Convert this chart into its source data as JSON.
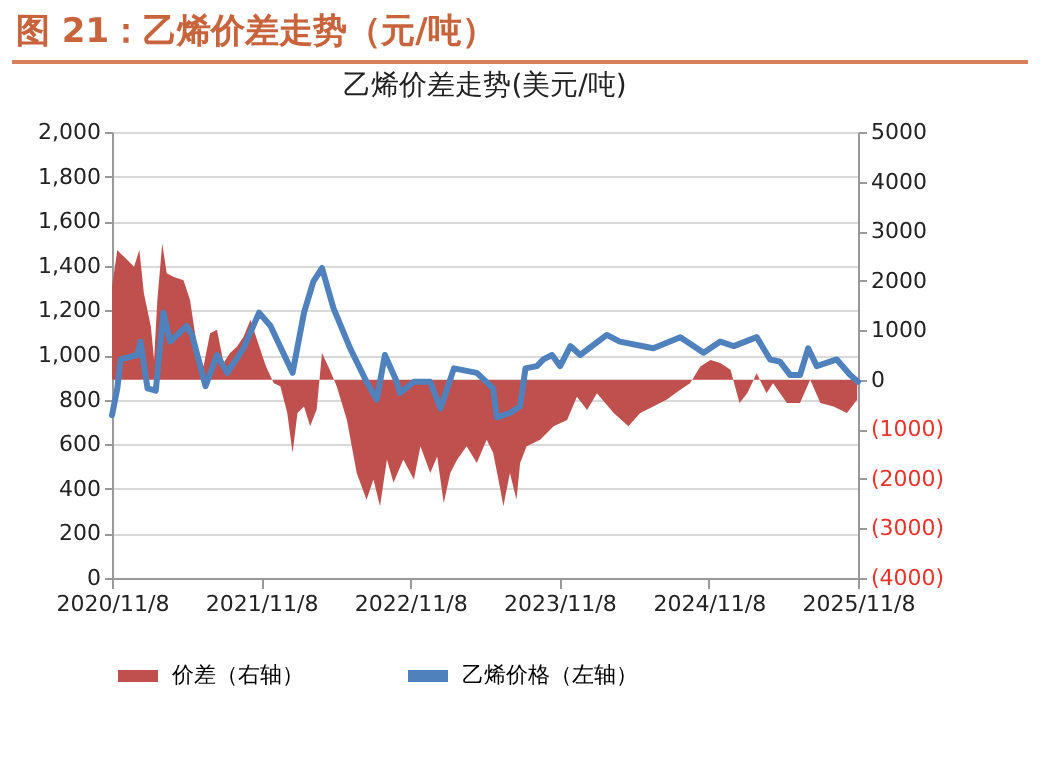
{
  "chart_data": {
    "type": "line",
    "title": "图 21：乙烯价差走势（元/吨）",
    "subtitle": "乙烯价差走势(美元/吨)",
    "xlim": [
      "2020-11-08",
      "2025-11-08"
    ],
    "xticks": [
      {
        "value": "2020-11-08",
        "label": "2020/11/8"
      },
      {
        "value": "2021-11-08",
        "label": "2021/11/8"
      },
      {
        "value": "2022-11-08",
        "label": "2022/11/8"
      },
      {
        "value": "2023-11-08",
        "label": "2023/11/8"
      },
      {
        "value": "2024-11-08",
        "label": "2024/11/8"
      },
      {
        "value": "2025-11-08",
        "label": "2025/11/8"
      }
    ],
    "ylim": [
      0,
      2000
    ],
    "yticks": [
      {
        "value": 0,
        "label": "0"
      },
      {
        "value": 200,
        "label": "200"
      },
      {
        "value": 400,
        "label": "400"
      },
      {
        "value": 600,
        "label": "600"
      },
      {
        "value": 800,
        "label": "800"
      },
      {
        "value": 1000,
        "label": "1,000"
      },
      {
        "value": 1200,
        "label": "1,200"
      },
      {
        "value": 1400,
        "label": "1,400"
      },
      {
        "value": 1600,
        "label": "1,600"
      },
      {
        "value": 1800,
        "label": "1,800"
      },
      {
        "value": 2000,
        "label": "2,000"
      }
    ],
    "y2lim": [
      -4000,
      5000
    ],
    "y2ticks": [
      {
        "value": -4000,
        "label": "(4000)"
      },
      {
        "value": -3000,
        "label": "(3000)"
      },
      {
        "value": -2000,
        "label": "(2000)"
      },
      {
        "value": -1000,
        "label": "(1000)"
      },
      {
        "value": 0,
        "label": "0"
      },
      {
        "value": 1000,
        "label": "1000"
      },
      {
        "value": 2000,
        "label": "2000"
      },
      {
        "value": 3000,
        "label": "3000"
      },
      {
        "value": 4000,
        "label": "4000"
      },
      {
        "value": 5000,
        "label": "5000"
      }
    ],
    "grid": "y",
    "legend": "bottom",
    "series": [
      {
        "name": "价差（右轴）",
        "type": "area",
        "axis": "y2",
        "color": "#c0504d",
        "x": [
          "2020-11-08",
          "2020-11-21",
          "2020-11-29",
          "2020-12-15",
          "2021-01-01",
          "2021-01-14",
          "2021-01-25",
          "2021-02-11",
          "2021-02-19",
          "2021-02-27",
          "2021-03-11",
          "2021-03-22",
          "2021-04-07",
          "2021-05-02",
          "2021-05-18",
          "2021-06-04",
          "2021-06-20",
          "2021-07-06",
          "2021-07-23",
          "2021-08-08",
          "2021-08-24",
          "2021-09-10",
          "2021-09-26",
          "2021-10-13",
          "2021-10-29",
          "2021-11-20",
          "2021-12-09",
          "2021-12-25",
          "2022-01-11",
          "2022-01-24",
          "2022-02-05",
          "2022-02-21",
          "2022-03-08",
          "2022-03-24",
          "2022-04-06",
          "2022-04-25",
          "2022-05-12",
          "2022-06-06",
          "2022-06-30",
          "2022-07-24",
          "2022-08-10",
          "2022-08-26",
          "2022-09-12",
          "2022-09-28",
          "2022-10-22",
          "2022-11-17",
          "2022-12-03",
          "2022-12-27",
          "2023-01-13",
          "2023-01-29",
          "2023-02-14",
          "2023-03-03",
          "2023-03-26",
          "2023-04-20",
          "2023-05-14",
          "2023-05-30",
          "2023-06-15",
          "2023-06-24",
          "2023-07-10",
          "2023-07-26",
          "2023-08-04",
          "2023-08-20",
          "2023-09-22",
          "2023-10-25",
          "2023-11-27",
          "2023-12-21",
          "2024-01-15",
          "2024-02-08",
          "2024-03-20",
          "2024-04-25",
          "2024-05-24",
          "2024-06-25",
          "2024-07-28",
          "2024-08-30",
          "2024-09-23",
          "2024-10-18",
          "2024-11-12",
          "2024-12-06",
          "2024-12-31",
          "2025-01-22",
          "2025-02-10",
          "2025-03-05",
          "2025-03-29",
          "2025-04-14",
          "2025-05-18",
          "2025-06-19",
          "2025-07-14",
          "2025-08-08",
          "2025-09-09",
          "2025-10-12",
          "2025-11-06"
        ],
        "values": [
          1880,
          2620,
          2550,
          2420,
          2280,
          2620,
          1750,
          1080,
          400,
          1610,
          2750,
          2150,
          2080,
          2010,
          1610,
          670,
          270,
          940,
          1010,
          340,
          540,
          670,
          870,
          1210,
          810,
          270,
          -70,
          -130,
          -670,
          -1480,
          -670,
          -540,
          -940,
          -600,
          540,
          200,
          -130,
          -810,
          -1880,
          -2420,
          -2010,
          -2550,
          -1610,
          -2080,
          -1610,
          -2010,
          -1340,
          -1880,
          -1550,
          -2490,
          -1880,
          -1610,
          -1340,
          -1680,
          -1210,
          -1480,
          -2150,
          -2550,
          -1880,
          -2420,
          -1680,
          -1340,
          -1210,
          -940,
          -810,
          -340,
          -610,
          -270,
          -670,
          -940,
          -670,
          -540,
          -400,
          -200,
          -70,
          270,
          400,
          340,
          200,
          -470,
          -270,
          130,
          -270,
          -70,
          -470,
          -470,
          0,
          -470,
          -540,
          -670,
          -400
        ]
      },
      {
        "name": "乙烯价格（左轴）",
        "axis": "y",
        "color": "#4f81bd",
        "x": [
          "2020-11-08",
          "2020-11-21",
          "2020-11-29",
          "2021-01-09",
          "2021-01-17",
          "2021-02-03",
          "2021-02-23",
          "2021-03-14",
          "2021-03-30",
          "2021-05-10",
          "2021-05-23",
          "2021-06-25",
          "2021-07-23",
          "2021-08-17",
          "2021-09-26",
          "2021-11-03",
          "2021-12-01",
          "2022-01-24",
          "2022-02-21",
          "2022-03-16",
          "2022-04-06",
          "2022-05-04",
          "2022-06-14",
          "2022-07-24",
          "2022-08-18",
          "2022-09-07",
          "2022-10-06",
          "2022-10-14",
          "2022-11-17",
          "2022-12-27",
          "2023-01-21",
          "2023-02-23",
          "2023-04-20",
          "2023-05-30",
          "2023-06-08",
          "2023-07-10",
          "2023-08-04",
          "2023-08-17",
          "2023-09-14",
          "2023-09-30",
          "2023-10-21",
          "2023-11-10",
          "2023-12-05",
          "2023-12-29",
          "2024-03-03",
          "2024-04-04",
          "2024-06-25",
          "2024-08-30",
          "2024-10-26",
          "2024-12-06",
          "2025-01-08",
          "2025-03-05",
          "2025-04-07",
          "2025-05-01",
          "2025-05-26",
          "2025-06-19",
          "2025-07-09",
          "2025-07-30",
          "2025-09-17",
          "2025-10-20",
          "2025-11-08"
        ],
        "values": [
          730,
          850,
          980,
          1000,
          1060,
          850,
          840,
          1190,
          1060,
          1130,
          1090,
          860,
          1000,
          920,
          1030,
          1190,
          1130,
          920,
          1190,
          1330,
          1390,
          1210,
          1030,
          880,
          800,
          1000,
          880,
          830,
          880,
          880,
          760,
          940,
          920,
          850,
          720,
          740,
          770,
          940,
          950,
          980,
          1000,
          950,
          1040,
          1000,
          1090,
          1060,
          1030,
          1080,
          1010,
          1060,
          1040,
          1080,
          980,
          970,
          910,
          910,
          1030,
          950,
          980,
          910,
          880
        ]
      }
    ]
  }
}
